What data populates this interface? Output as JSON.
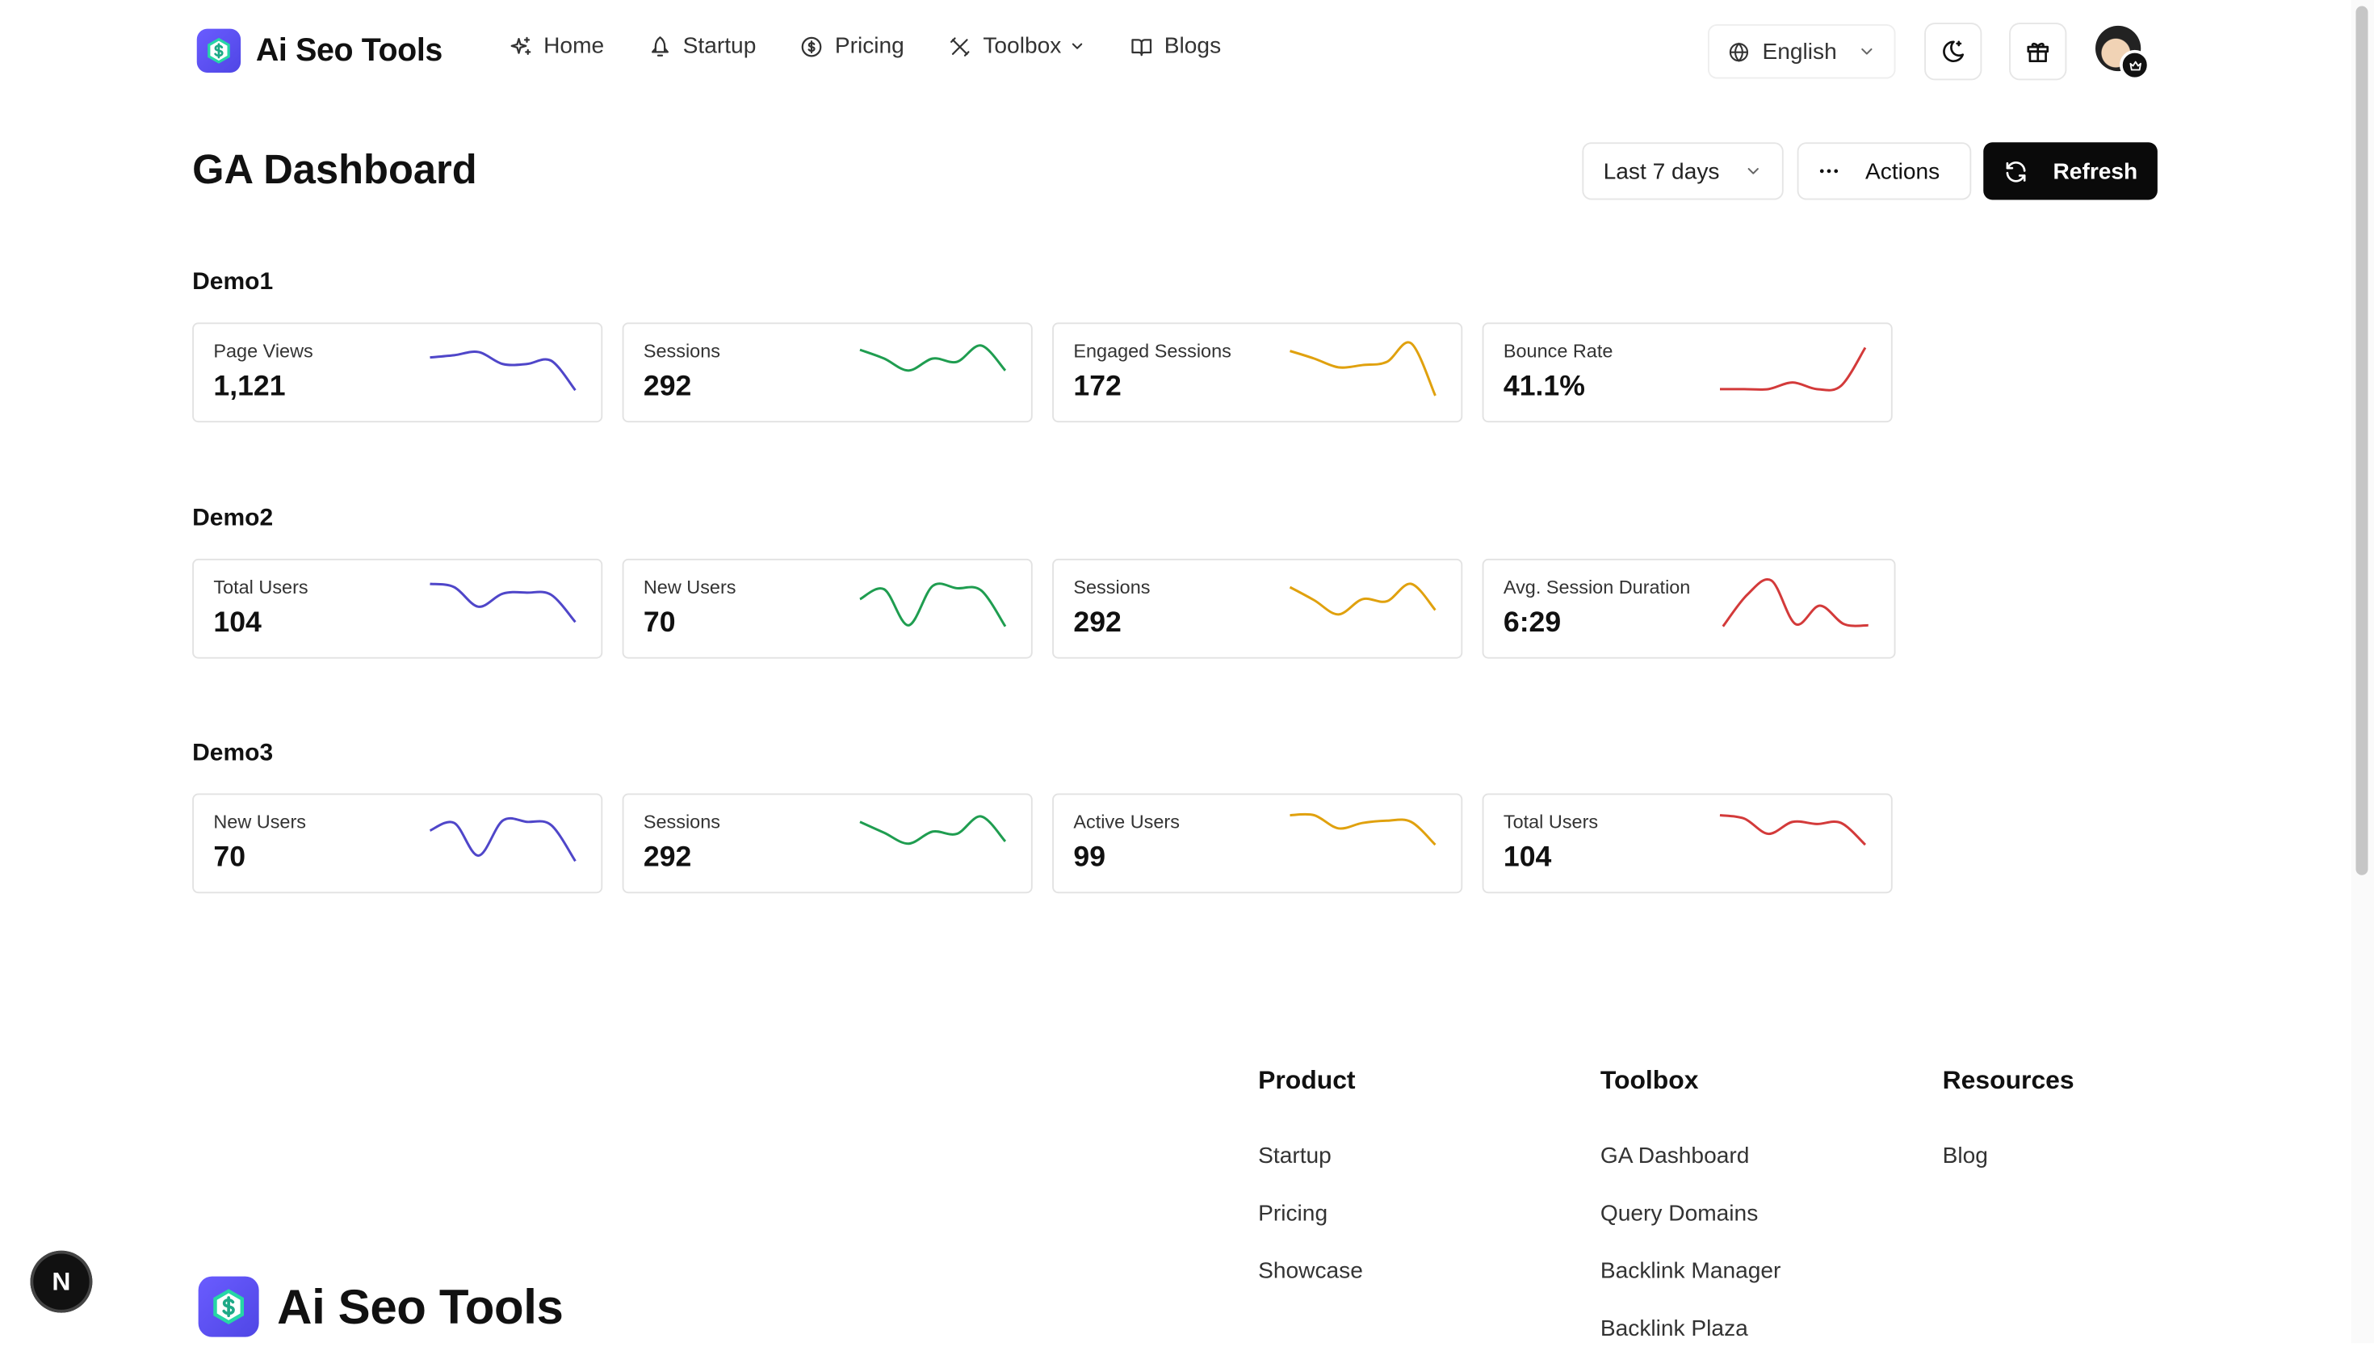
{
  "header": {
    "brand": "Ai Seo Tools",
    "nav": [
      {
        "label": "Home",
        "icon": "sparkle-icon"
      },
      {
        "label": "Startup",
        "icon": "rocket-icon"
      },
      {
        "label": "Pricing",
        "icon": "dollar-circle-icon"
      },
      {
        "label": "Toolbox",
        "icon": "tools-icon"
      },
      {
        "label": "Blogs",
        "icon": "book-icon"
      }
    ],
    "language": "English"
  },
  "page": {
    "title": "GA Dashboard",
    "range": "Last 7 days",
    "actions_label": "Actions",
    "refresh_label": "Refresh"
  },
  "colors": {
    "indigo": "#4f46c9",
    "green": "#1f9d50",
    "amber": "#e0a10e",
    "red": "#d33a3a",
    "accent_dark": "#0a0a0a"
  },
  "sections": [
    {
      "title": "Demo1",
      "cards": [
        {
          "label": "Page Views",
          "value": "1,121",
          "color": "indigo",
          "trend": [
            0.72,
            0.76,
            0.82,
            0.6,
            0.6,
            0.66,
            0.12
          ]
        },
        {
          "label": "Sessions",
          "value": "292",
          "color": "green",
          "trend": [
            0.86,
            0.7,
            0.48,
            0.7,
            0.64,
            0.94,
            0.48
          ]
        },
        {
          "label": "Engaged Sessions",
          "value": "172",
          "color": "amber",
          "trend": [
            0.84,
            0.7,
            0.54,
            0.58,
            0.64,
            0.98,
            0.02
          ]
        },
        {
          "label": "Bounce Rate",
          "value": "41.1%",
          "color": "red",
          "trend": [
            0.14,
            0.14,
            0.14,
            0.26,
            0.14,
            0.2,
            0.9
          ]
        }
      ]
    },
    {
      "title": "Demo2",
      "cards": [
        {
          "label": "Total Users",
          "value": "104",
          "color": "indigo",
          "trend": [
            0.9,
            0.84,
            0.48,
            0.72,
            0.74,
            0.7,
            0.2
          ]
        },
        {
          "label": "New Users",
          "value": "70",
          "color": "green",
          "trend": [
            0.62,
            0.8,
            0.14,
            0.86,
            0.82,
            0.78,
            0.12
          ]
        },
        {
          "label": "Sessions",
          "value": "292",
          "color": "amber",
          "trend": [
            0.84,
            0.6,
            0.34,
            0.62,
            0.58,
            0.9,
            0.42
          ]
        },
        {
          "label": "Avg. Session Duration",
          "value": "6:29",
          "color": "red",
          "trend": [
            0.12,
            0.7,
            0.96,
            0.16,
            0.5,
            0.16,
            0.14
          ]
        }
      ]
    },
    {
      "title": "Demo3",
      "cards": [
        {
          "label": "New Users",
          "value": "70",
          "color": "indigo",
          "trend": [
            0.68,
            0.82,
            0.22,
            0.86,
            0.84,
            0.78,
            0.12
          ]
        },
        {
          "label": "Sessions",
          "value": "292",
          "color": "green",
          "trend": [
            0.84,
            0.64,
            0.44,
            0.66,
            0.62,
            0.94,
            0.48
          ]
        },
        {
          "label": "Active Users",
          "value": "99",
          "color": "amber",
          "trend": [
            0.96,
            0.96,
            0.72,
            0.82,
            0.86,
            0.84,
            0.42
          ]
        },
        {
          "label": "Total Users",
          "value": "104",
          "color": "red",
          "trend": [
            0.96,
            0.9,
            0.62,
            0.84,
            0.8,
            0.82,
            0.42
          ]
        }
      ]
    }
  ],
  "footer": {
    "columns": [
      {
        "title": "Product",
        "links": [
          "Startup",
          "Pricing",
          "Showcase"
        ]
      },
      {
        "title": "Toolbox",
        "links": [
          "GA Dashboard",
          "Query Domains",
          "Backlink Manager",
          "Backlink Plaza"
        ]
      },
      {
        "title": "Resources",
        "links": [
          "Blog"
        ]
      }
    ],
    "brand": "Ai Seo Tools"
  },
  "badge": "N"
}
